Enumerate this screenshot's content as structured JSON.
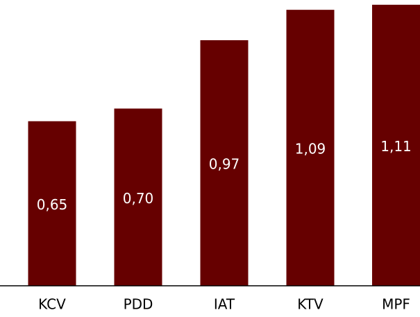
{
  "chart_data": {
    "type": "bar",
    "categories": [
      "KCV",
      "PDD",
      "IAT",
      "KTV",
      "MPF"
    ],
    "values": [
      0.65,
      0.7,
      0.97,
      1.09,
      1.11
    ],
    "value_labels": [
      "0,65",
      "0,70",
      "0,97",
      "1,09",
      "1,11"
    ],
    "color": "#660000"
  }
}
